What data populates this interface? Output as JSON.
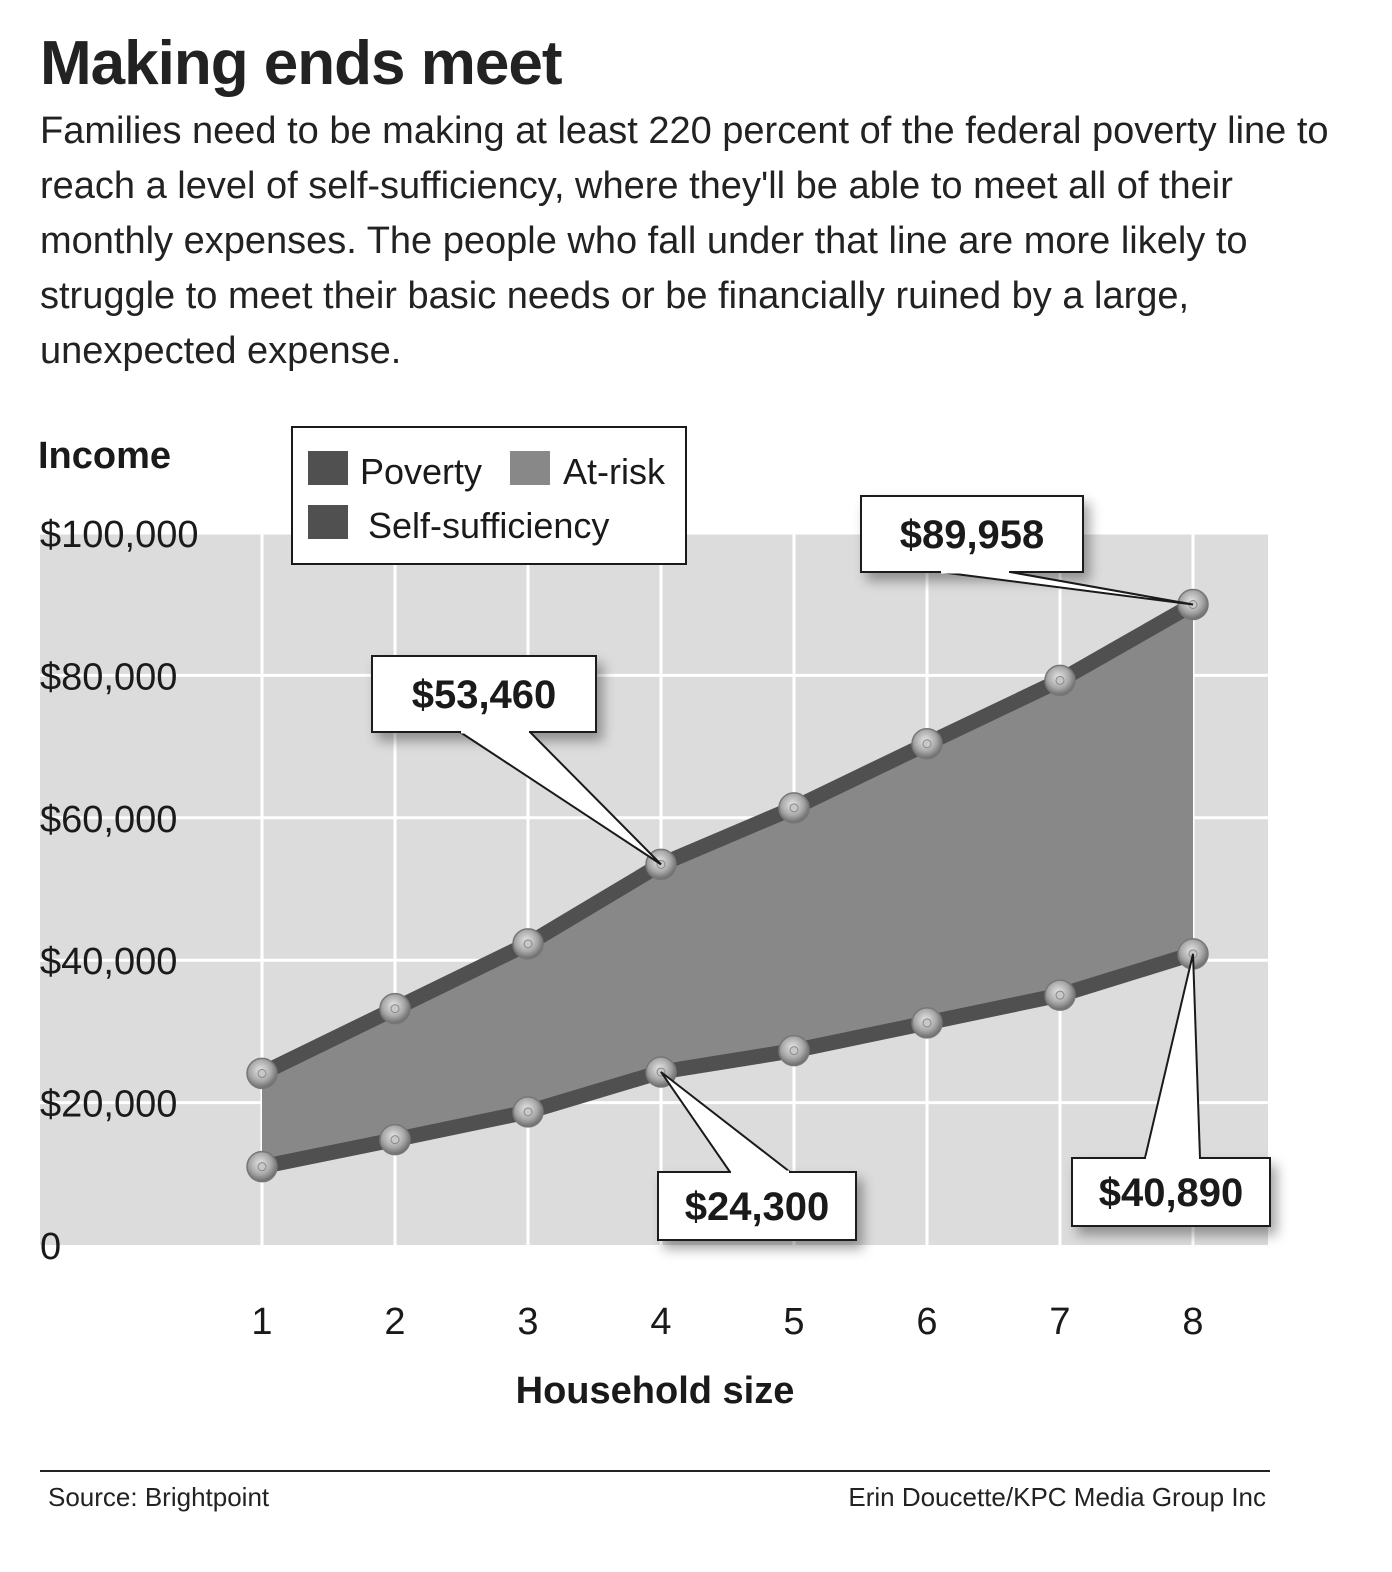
{
  "title": "Making ends meet",
  "subtitle": "Families need to be making at least 220 percent of the federal poverty line to reach a level of self-sufficiency, where they'll be able to meet all of their monthly expenses. The people who fall under that line are more likely to struggle to meet their basic needs or be financially ruined by a large, unexpected expense.",
  "footer": {
    "source": "Source: Brightpoint",
    "credit": "Erin Doucette/KPC Media Group Inc"
  },
  "chart_data": {
    "type": "area",
    "ylabel": "Income",
    "xlabel": "Household size",
    "categories": [
      "1",
      "2",
      "3",
      "4",
      "5",
      "6",
      "7",
      "8"
    ],
    "ylim": [
      0,
      100000
    ],
    "yticks": [
      0,
      20000,
      40000,
      60000,
      80000,
      100000
    ],
    "ytick_labels": [
      "0",
      "$20,000",
      "$40,000",
      "$60,000",
      "$80,000",
      "$100,000"
    ],
    "grid": true,
    "legend": {
      "position": "top-left",
      "entries": [
        "Poverty",
        "At-risk",
        "Self-sufficiency"
      ]
    },
    "series": [
      {
        "name": "Poverty",
        "values": [
          11000,
          14800,
          18700,
          24300,
          27300,
          31200,
          35100,
          40890
        ]
      },
      {
        "name": "Self-sufficiency",
        "values": [
          24100,
          33200,
          42300,
          53460,
          61400,
          70400,
          79300,
          89958
        ]
      }
    ],
    "band": {
      "name": "At-risk",
      "between": [
        "Poverty",
        "Self-sufficiency"
      ]
    },
    "annotations": [
      {
        "text": "$89,958",
        "series": "Self-sufficiency",
        "category": "8"
      },
      {
        "text": "$53,460",
        "series": "Self-sufficiency",
        "category": "4"
      },
      {
        "text": "$24,300",
        "series": "Poverty",
        "category": "4"
      },
      {
        "text": "$40,890",
        "series": "Poverty",
        "category": "8"
      }
    ],
    "colors": {
      "plot_bg": "#dcdcdc",
      "grid": "#ffffff",
      "line": "#505050",
      "band": "#888888",
      "marker": "#b0b0b0"
    }
  }
}
